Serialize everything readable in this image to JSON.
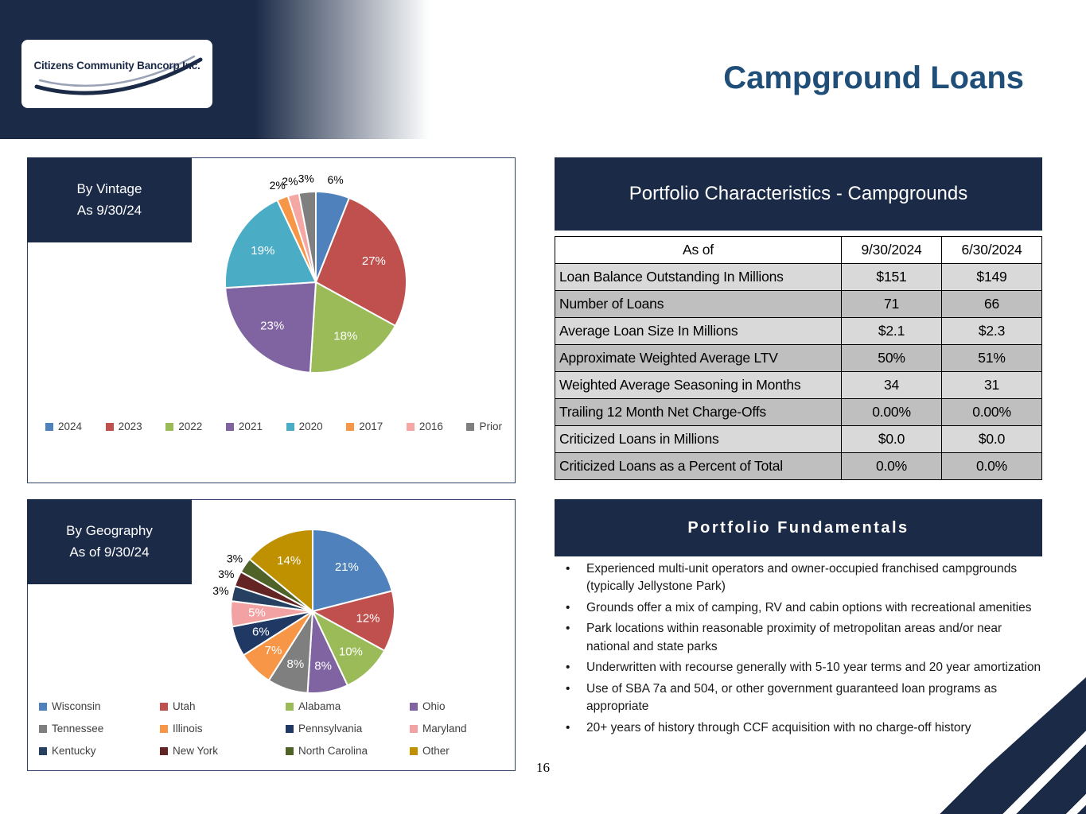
{
  "header": {
    "logo_text": "Citizens Community Bancorp Inc.",
    "title": "Campground Loans"
  },
  "chart_data": [
    {
      "type": "pie",
      "title_lines": [
        "By Vintage",
        "As 9/30/24"
      ],
      "labels": [
        "2024",
        "2023",
        "2022",
        "2021",
        "2020",
        "2017",
        "2016",
        "Prior"
      ],
      "values": [
        6,
        27,
        18,
        23,
        19,
        2,
        2,
        3
      ],
      "colors": [
        "#4f81bd",
        "#c0504d",
        "#9bbb59",
        "#8064a2",
        "#4bacc6",
        "#f79646",
        "#f4a7a3",
        "#7f7f7f"
      ],
      "label_threshold": 6,
      "legend_position": "bottom-row"
    },
    {
      "type": "pie",
      "title_lines": [
        "By Geography",
        "As of 9/30/24"
      ],
      "labels": [
        "Wisconsin",
        "Utah",
        "Alabama",
        "Ohio",
        "Tennessee",
        "Illinois",
        "Pennsylvania",
        "Maryland",
        "Kentucky",
        "New York",
        "North Carolina",
        "Other"
      ],
      "values": [
        21,
        12,
        10,
        8,
        8,
        7,
        6,
        5,
        3,
        3,
        3,
        14
      ],
      "colors": [
        "#4f81bd",
        "#c0504d",
        "#9bbb59",
        "#8064a2",
        "#7f7f7f",
        "#f79646",
        "#1f3864",
        "#f2a2a2",
        "#254061",
        "#632423",
        "#4f6228",
        "#bf9000"
      ],
      "label_threshold": 3,
      "legend_position": "bottom-grid"
    }
  ],
  "characteristics": {
    "title": "Portfolio Characteristics - Campgrounds",
    "columns": [
      "As of",
      "9/30/2024",
      "6/30/2024"
    ],
    "rows": [
      [
        "Loan Balance Outstanding In Millions",
        "$151",
        "$149"
      ],
      [
        "Number of Loans",
        "71",
        "66"
      ],
      [
        "Average Loan Size In Millions",
        "$2.1",
        "$2.3"
      ],
      [
        "Approximate Weighted Average LTV",
        "50%",
        "51%"
      ],
      [
        "Weighted Average Seasoning in Months",
        "34",
        "31"
      ],
      [
        "Trailing 12 Month Net Charge-Offs",
        "0.00%",
        "0.00%"
      ],
      [
        "Criticized Loans in Millions",
        "$0.0",
        "$0.0"
      ],
      [
        "Criticized Loans as a Percent of Total",
        "0.0%",
        "0.0%"
      ]
    ]
  },
  "fundamentals": {
    "title": "Portfolio Fundamentals",
    "bullets": [
      "Experienced multi-unit operators and owner-occupied franchised campgrounds (typically Jellystone Park)",
      "Grounds offer a mix of camping, RV and cabin options with recreational amenities",
      "Park locations within reasonable proximity of metropolitan areas and/or near national and state parks",
      "Underwritten with recourse generally with 5-10 year terms and 20 year amortization",
      "Use of SBA 7a and 504, or other government guaranteed loan programs as appropriate",
      "20+ years of history through CCF acquisition with no charge-off history"
    ]
  },
  "page_number": "16",
  "colors": {
    "navy": "#1b2a47",
    "title_blue": "#1f4e79",
    "row_light": "#d9d9d9",
    "row_dark": "#bfbfbf"
  }
}
